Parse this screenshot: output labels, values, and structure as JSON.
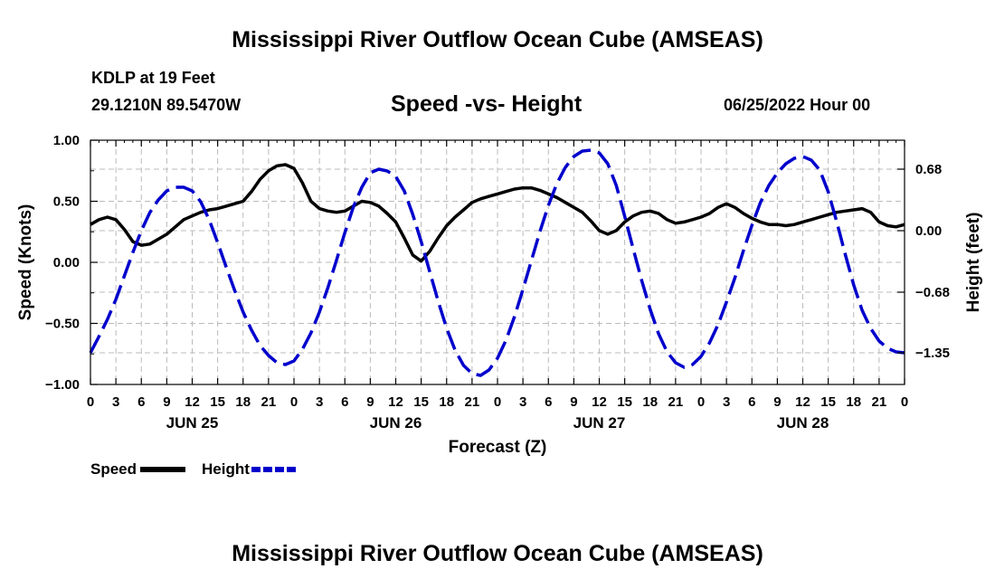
{
  "page": {
    "title_top": "Mississippi River Outflow Ocean Cube (AMSEAS)",
    "title_bottom": "Mississippi River Outflow Ocean Cube (AMSEAS)",
    "station": "KDLP at 19 Feet",
    "coords": "29.1210N  89.5470W",
    "subtitle": "Speed -vs- Height",
    "datetime": "06/25/2022 Hour 00"
  },
  "legend": {
    "speed_label": "Speed",
    "height_label": "Height"
  },
  "colors": {
    "speed": "#000000",
    "height": "#0000cc",
    "grid": "#bbbbbb"
  },
  "chart_data": {
    "type": "line",
    "xlabel": "Forecast (Z)",
    "ylabel_left": "Speed (Knots)",
    "ylabel_right": "Height (feet)",
    "x_hours_range": [
      0,
      96
    ],
    "x_tick_labels": [
      "0",
      "3",
      "6",
      "9",
      "12",
      "15",
      "18",
      "21",
      "0",
      "3",
      "6",
      "9",
      "12",
      "15",
      "18",
      "21",
      "0",
      "3",
      "6",
      "9",
      "12",
      "15",
      "18",
      "21",
      "0",
      "3",
      "6",
      "9",
      "12",
      "15",
      "18",
      "21",
      "0"
    ],
    "day_labels": [
      {
        "label": "JUN 25",
        "hour": 12
      },
      {
        "label": "JUN 26",
        "hour": 36
      },
      {
        "label": "JUN 27",
        "hour": 60
      },
      {
        "label": "JUN 28",
        "hour": 84
      }
    ],
    "y_left_range": [
      -1.0,
      1.0
    ],
    "y_left_ticks": [
      {
        "value": 1.0,
        "label": "1.00"
      },
      {
        "value": 0.5,
        "label": "0.50"
      },
      {
        "value": 0.0,
        "label": "0.00"
      },
      {
        "value": -0.5,
        "label": "−0.50"
      },
      {
        "value": -1.0,
        "label": "−1.00"
      }
    ],
    "y_right_range": [
      -1.7,
      1.0
    ],
    "y_right_ticks": [
      {
        "value": 0.68,
        "label": "0.68"
      },
      {
        "value": 0.0,
        "label": "0.00"
      },
      {
        "value": -0.68,
        "label": "−0.68"
      },
      {
        "value": -1.35,
        "label": "−1.35"
      }
    ],
    "grid": true,
    "series": [
      {
        "name": "Speed",
        "axis": "left",
        "style": "solid",
        "x": [
          0,
          1,
          2,
          3,
          4,
          5,
          6,
          7,
          8,
          9,
          10,
          11,
          12,
          13,
          14,
          15,
          16,
          17,
          18,
          19,
          20,
          21,
          22,
          23,
          24,
          25,
          26,
          27,
          28,
          29,
          30,
          31,
          32,
          33,
          34,
          35,
          36,
          37,
          38,
          39,
          40,
          41,
          42,
          43,
          44,
          45,
          46,
          47,
          48,
          49,
          50,
          51,
          52,
          53,
          54,
          55,
          56,
          57,
          58,
          59,
          60,
          61,
          62,
          63,
          64,
          65,
          66,
          67,
          68,
          69,
          70,
          71,
          72,
          73,
          74,
          75,
          76,
          77,
          78,
          79,
          80,
          81,
          82,
          83,
          84,
          85,
          86,
          87,
          88,
          89,
          90,
          91,
          92,
          93,
          94,
          95,
          96
        ],
        "y": [
          0.31,
          0.35,
          0.37,
          0.35,
          0.27,
          0.17,
          0.14,
          0.15,
          0.19,
          0.23,
          0.29,
          0.35,
          0.38,
          0.41,
          0.43,
          0.44,
          0.46,
          0.48,
          0.5,
          0.58,
          0.68,
          0.75,
          0.79,
          0.8,
          0.77,
          0.65,
          0.5,
          0.44,
          0.42,
          0.41,
          0.42,
          0.46,
          0.5,
          0.49,
          0.46,
          0.4,
          0.33,
          0.2,
          0.06,
          0.01,
          0.09,
          0.2,
          0.3,
          0.37,
          0.43,
          0.49,
          0.52,
          0.54,
          0.56,
          0.58,
          0.6,
          0.61,
          0.61,
          0.59,
          0.56,
          0.53,
          0.49,
          0.45,
          0.41,
          0.34,
          0.26,
          0.23,
          0.26,
          0.33,
          0.38,
          0.41,
          0.42,
          0.4,
          0.35,
          0.32,
          0.33,
          0.35,
          0.37,
          0.4,
          0.45,
          0.48,
          0.45,
          0.4,
          0.36,
          0.33,
          0.31,
          0.31,
          0.3,
          0.31,
          0.33,
          0.35,
          0.37,
          0.39,
          0.41,
          0.42,
          0.43,
          0.44,
          0.41,
          0.33,
          0.3,
          0.29,
          0.31
        ]
      },
      {
        "name": "Height",
        "axis": "right",
        "style": "dashed",
        "x": [
          0,
          1,
          2,
          3,
          4,
          5,
          6,
          7,
          8,
          9,
          10,
          11,
          12,
          13,
          14,
          15,
          16,
          17,
          18,
          19,
          20,
          21,
          22,
          23,
          24,
          25,
          26,
          27,
          28,
          29,
          30,
          31,
          32,
          33,
          34,
          35,
          36,
          37,
          38,
          39,
          40,
          41,
          42,
          43,
          44,
          45,
          46,
          47,
          48,
          49,
          50,
          51,
          52,
          53,
          54,
          55,
          56,
          57,
          58,
          59,
          60,
          61,
          62,
          63,
          64,
          65,
          66,
          67,
          68,
          69,
          70,
          71,
          72,
          73,
          74,
          75,
          76,
          77,
          78,
          79,
          80,
          81,
          82,
          83,
          84,
          85,
          86,
          87,
          88,
          89,
          90,
          91,
          92,
          93,
          94,
          95,
          96
        ],
        "y": [
          -1.35,
          -1.17,
          -0.98,
          -0.76,
          -0.5,
          -0.24,
          0.0,
          0.2,
          0.34,
          0.44,
          0.48,
          0.48,
          0.44,
          0.32,
          0.12,
          -0.13,
          -0.4,
          -0.66,
          -0.9,
          -1.1,
          -1.27,
          -1.38,
          -1.46,
          -1.48,
          -1.44,
          -1.31,
          -1.13,
          -0.9,
          -0.63,
          -0.33,
          -0.02,
          0.26,
          0.48,
          0.64,
          0.68,
          0.66,
          0.6,
          0.44,
          0.18,
          -0.12,
          -0.45,
          -0.78,
          -1.08,
          -1.32,
          -1.49,
          -1.58,
          -1.6,
          -1.54,
          -1.41,
          -1.21,
          -0.95,
          -0.65,
          -0.33,
          -0.01,
          0.28,
          0.52,
          0.7,
          0.82,
          0.88,
          0.89,
          0.86,
          0.74,
          0.5,
          0.16,
          -0.2,
          -0.55,
          -0.87,
          -1.14,
          -1.34,
          -1.46,
          -1.51,
          -1.48,
          -1.39,
          -1.24,
          -1.04,
          -0.79,
          -0.52,
          -0.22,
          0.06,
          0.31,
          0.5,
          0.64,
          0.74,
          0.8,
          0.82,
          0.78,
          0.67,
          0.43,
          0.1,
          -0.26,
          -0.6,
          -0.88,
          -1.08,
          -1.22,
          -1.3,
          -1.34,
          -1.35
        ]
      }
    ]
  }
}
